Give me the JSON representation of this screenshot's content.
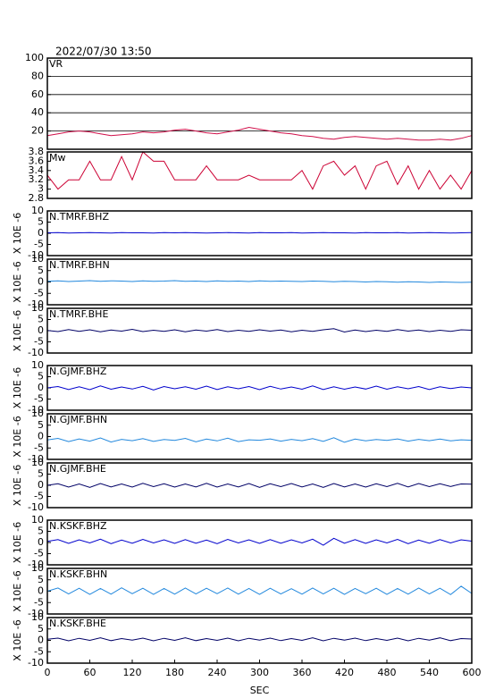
{
  "header": {
    "timestamp": "2022/07/30 13:50"
  },
  "chart_data": [
    {
      "type": "line",
      "title": "VR",
      "color": "#d0104a",
      "grid": true,
      "ylim": [
        0,
        100
      ],
      "yticks": [
        20,
        40,
        60,
        80,
        100
      ],
      "xlim": [
        0,
        600
      ],
      "x": [
        0,
        15,
        30,
        45,
        60,
        75,
        90,
        105,
        120,
        135,
        150,
        165,
        180,
        195,
        210,
        225,
        240,
        255,
        270,
        285,
        300,
        315,
        330,
        345,
        360,
        375,
        390,
        405,
        420,
        435,
        450,
        465,
        480,
        495,
        510,
        525,
        540,
        555,
        570,
        585,
        600
      ],
      "values": [
        15,
        17,
        19,
        20,
        19,
        17,
        15,
        16,
        17,
        19,
        18,
        19,
        21,
        22,
        20,
        18,
        17,
        19,
        21,
        24,
        22,
        20,
        18,
        17,
        15,
        14,
        12,
        11,
        13,
        14,
        13,
        12,
        11,
        12,
        11,
        10,
        10,
        11,
        10,
        12,
        15
      ]
    },
    {
      "type": "line",
      "title": "Mw",
      "color": "#cc0033",
      "grid": false,
      "ylim": [
        2.8,
        3.8
      ],
      "yticks": [
        2.8,
        3.0,
        3.2,
        3.4,
        3.6,
        3.8
      ],
      "xlim": [
        0,
        600
      ],
      "x": [
        0,
        15,
        30,
        45,
        60,
        75,
        90,
        105,
        120,
        135,
        150,
        165,
        180,
        195,
        210,
        225,
        240,
        255,
        270,
        285,
        300,
        315,
        330,
        345,
        360,
        375,
        390,
        405,
        420,
        435,
        450,
        465,
        480,
        495,
        510,
        525,
        540,
        555,
        570,
        585,
        600
      ],
      "values": [
        3.3,
        3.0,
        3.2,
        3.2,
        3.6,
        3.2,
        3.2,
        3.7,
        3.2,
        3.8,
        3.6,
        3.6,
        3.2,
        3.2,
        3.2,
        3.5,
        3.2,
        3.2,
        3.2,
        3.3,
        3.2,
        3.2,
        3.2,
        3.2,
        3.4,
        3.0,
        3.5,
        3.6,
        3.3,
        3.5,
        3.0,
        3.5,
        3.6,
        3.1,
        3.5,
        3.0,
        3.4,
        3.0,
        3.3,
        3.0,
        3.4
      ]
    },
    {
      "type": "line",
      "title": "N.TMRF.BHZ",
      "ylabel": "X 10E -6",
      "color": "#0000cc",
      "ylim": [
        -10,
        10
      ],
      "yticks": [
        -10,
        -5,
        0,
        5,
        10
      ],
      "xlim": [
        0,
        600
      ],
      "x": [
        0,
        15,
        30,
        45,
        60,
        75,
        90,
        105,
        120,
        135,
        150,
        165,
        180,
        195,
        210,
        225,
        240,
        255,
        270,
        285,
        300,
        315,
        330,
        345,
        360,
        375,
        390,
        405,
        420,
        435,
        450,
        465,
        480,
        495,
        510,
        525,
        540,
        555,
        570,
        585,
        600
      ],
      "values": [
        0.2,
        0.3,
        0.1,
        0.2,
        0.3,
        0.2,
        0.1,
        0.3,
        0.2,
        0.2,
        0.1,
        0.3,
        0.2,
        0.3,
        0.2,
        0.1,
        0.2,
        0.3,
        0.2,
        0.1,
        0.3,
        0.2,
        0.2,
        0.3,
        0.1,
        0.2,
        0.3,
        0.2,
        0.2,
        0.1,
        0.3,
        0.2,
        0.2,
        0.3,
        0.1,
        0.2,
        0.3,
        0.2,
        0.1,
        0.2,
        0.3
      ]
    },
    {
      "type": "line",
      "title": "N.TMRF.BHN",
      "ylabel": "X 10E -6",
      "color": "#2288dd",
      "ylim": [
        -10,
        10
      ],
      "yticks": [
        -10,
        -5,
        0,
        5,
        10
      ],
      "xlim": [
        0,
        600
      ],
      "x": [
        0,
        15,
        30,
        45,
        60,
        75,
        90,
        105,
        120,
        135,
        150,
        165,
        180,
        195,
        210,
        225,
        240,
        255,
        270,
        285,
        300,
        315,
        330,
        345,
        360,
        375,
        390,
        405,
        420,
        435,
        450,
        465,
        480,
        495,
        510,
        525,
        540,
        555,
        570,
        585,
        600
      ],
      "values": [
        0.3,
        0.5,
        0.2,
        0.4,
        0.6,
        0.3,
        0.5,
        0.4,
        0.2,
        0.5,
        0.3,
        0.4,
        0.6,
        0.3,
        0.4,
        0.2,
        0.5,
        0.3,
        0.4,
        0.2,
        0.5,
        0.3,
        0.4,
        0.3,
        0.2,
        0.4,
        0.3,
        0.1,
        0.3,
        0.2,
        0.0,
        0.2,
        0.1,
        -0.1,
        0.1,
        0.0,
        -0.2,
        0.0,
        -0.1,
        -0.2,
        -0.1
      ]
    },
    {
      "type": "line",
      "title": "N.TMRF.BHE",
      "ylabel": "X 10E -6",
      "color": "#000066",
      "ylim": [
        -10,
        10
      ],
      "yticks": [
        -10,
        -5,
        0,
        5,
        10
      ],
      "xlim": [
        0,
        600
      ],
      "x": [
        0,
        15,
        30,
        45,
        60,
        75,
        90,
        105,
        120,
        135,
        150,
        165,
        180,
        195,
        210,
        225,
        240,
        255,
        270,
        285,
        300,
        315,
        330,
        345,
        360,
        375,
        390,
        405,
        420,
        435,
        450,
        465,
        480,
        495,
        510,
        525,
        540,
        555,
        570,
        585,
        600
      ],
      "values": [
        0.1,
        -0.4,
        0.5,
        -0.3,
        0.4,
        -0.5,
        0.3,
        -0.2,
        0.6,
        -0.4,
        0.2,
        -0.3,
        0.4,
        -0.5,
        0.3,
        -0.2,
        0.5,
        -0.4,
        0.2,
        -0.3,
        0.4,
        -0.2,
        0.3,
        -0.5,
        0.2,
        -0.3,
        0.4,
        0.9,
        -0.6,
        0.3,
        -0.4,
        0.2,
        -0.3,
        0.5,
        -0.2,
        0.3,
        -0.4,
        0.2,
        -0.3,
        0.4,
        0.2
      ]
    },
    {
      "type": "line",
      "title": "N.GJMF.BHZ",
      "ylabel": "X 10E -6",
      "color": "#0000cc",
      "ylim": [
        -10,
        10
      ],
      "yticks": [
        -10,
        -5,
        0,
        5,
        10
      ],
      "xlim": [
        0,
        600
      ],
      "x": [
        0,
        15,
        30,
        45,
        60,
        75,
        90,
        105,
        120,
        135,
        150,
        165,
        180,
        195,
        210,
        225,
        240,
        255,
        270,
        285,
        300,
        315,
        330,
        345,
        360,
        375,
        390,
        405,
        420,
        435,
        450,
        465,
        480,
        495,
        510,
        525,
        540,
        555,
        570,
        585,
        600
      ],
      "values": [
        0.0,
        0.6,
        -0.7,
        0.5,
        -0.8,
        0.9,
        -0.6,
        0.4,
        -0.5,
        0.7,
        -0.9,
        0.6,
        -0.4,
        0.5,
        -0.6,
        0.8,
        -0.7,
        0.5,
        -0.4,
        0.6,
        -0.8,
        0.7,
        -0.5,
        0.4,
        -0.6,
        0.9,
        -0.7,
        0.5,
        -0.6,
        0.4,
        -0.5,
        0.8,
        -0.6,
        0.5,
        -0.4,
        0.6,
        -0.7,
        0.5,
        -0.3,
        0.4,
        0.0
      ]
    },
    {
      "type": "line",
      "title": "N.GJMF.BHN",
      "ylabel": "X 10E -6",
      "color": "#2288dd",
      "ylim": [
        -10,
        10
      ],
      "yticks": [
        -10,
        -5,
        0,
        5,
        10
      ],
      "xlim": [
        0,
        600
      ],
      "x": [
        0,
        15,
        30,
        45,
        60,
        75,
        90,
        105,
        120,
        135,
        150,
        165,
        180,
        195,
        210,
        225,
        240,
        255,
        270,
        285,
        300,
        315,
        330,
        345,
        360,
        375,
        390,
        405,
        420,
        435,
        450,
        465,
        480,
        495,
        510,
        525,
        540,
        555,
        570,
        585,
        600
      ],
      "values": [
        -1.5,
        -0.8,
        -2.2,
        -1.0,
        -2.0,
        -0.6,
        -2.4,
        -1.2,
        -1.8,
        -0.9,
        -2.1,
        -1.3,
        -1.7,
        -0.8,
        -2.3,
        -1.1,
        -1.9,
        -0.7,
        -2.2,
        -1.4,
        -1.6,
        -1.0,
        -2.0,
        -1.2,
        -1.8,
        -0.9,
        -2.1,
        -0.5,
        -2.5,
        -1.1,
        -1.9,
        -1.3,
        -1.7,
        -1.0,
        -2.0,
        -1.2,
        -1.8,
        -1.1,
        -1.9,
        -1.4,
        -1.6
      ]
    },
    {
      "type": "line",
      "title": "N.GJMF.BHE",
      "ylabel": "X 10E -6",
      "color": "#000066",
      "ylim": [
        -10,
        10
      ],
      "yticks": [
        -10,
        -5,
        0,
        5,
        10
      ],
      "xlim": [
        0,
        600
      ],
      "x": [
        0,
        15,
        30,
        45,
        60,
        75,
        90,
        105,
        120,
        135,
        150,
        165,
        180,
        195,
        210,
        225,
        240,
        255,
        270,
        285,
        300,
        315,
        330,
        345,
        360,
        375,
        390,
        405,
        420,
        435,
        450,
        465,
        480,
        495,
        510,
        525,
        540,
        555,
        570,
        585,
        600
      ],
      "values": [
        0.0,
        0.7,
        -0.8,
        0.6,
        -0.9,
        0.8,
        -0.7,
        0.6,
        -0.8,
        0.9,
        -0.6,
        0.7,
        -0.8,
        0.6,
        -0.7,
        0.9,
        -0.8,
        0.6,
        -0.7,
        0.8,
        -0.9,
        0.7,
        -0.6,
        0.8,
        -0.7,
        0.6,
        -0.9,
        0.8,
        -0.7,
        0.6,
        -0.8,
        0.7,
        -0.6,
        0.9,
        -0.7,
        0.8,
        -0.6,
        0.7,
        -0.5,
        0.6,
        0.5
      ]
    },
    {
      "type": "line",
      "title": "N.KSKF.BHZ",
      "ylabel": "X 10E -6",
      "color": "#0000cc",
      "ylim": [
        -10,
        10
      ],
      "yticks": [
        -10,
        -5,
        0,
        5,
        10
      ],
      "xlim": [
        0,
        600
      ],
      "x": [
        0,
        15,
        30,
        45,
        60,
        75,
        90,
        105,
        120,
        135,
        150,
        165,
        180,
        195,
        210,
        225,
        240,
        255,
        270,
        285,
        300,
        315,
        330,
        345,
        360,
        375,
        390,
        405,
        420,
        435,
        450,
        465,
        480,
        495,
        510,
        525,
        540,
        555,
        570,
        585,
        600
      ],
      "values": [
        0.5,
        1.3,
        -0.4,
        1.2,
        -0.2,
        1.5,
        -0.5,
        1.1,
        -0.3,
        1.4,
        -0.2,
        1.2,
        -0.4,
        1.3,
        -0.3,
        1.1,
        -0.5,
        1.4,
        -0.2,
        1.2,
        -0.4,
        1.3,
        -0.3,
        1.2,
        -0.2,
        1.5,
        -1.2,
        1.9,
        -0.3,
        1.3,
        -0.4,
        1.2,
        -0.2,
        1.4,
        -0.5,
        1.1,
        -0.3,
        1.3,
        -0.2,
        1.2,
        0.6
      ]
    },
    {
      "type": "line",
      "title": "N.KSKF.BHN",
      "ylabel": "X 10E -6",
      "color": "#2288dd",
      "ylim": [
        -10,
        10
      ],
      "yticks": [
        -10,
        -5,
        0,
        5,
        10
      ],
      "xlim": [
        0,
        600
      ],
      "x": [
        0,
        15,
        30,
        45,
        60,
        75,
        90,
        105,
        120,
        135,
        150,
        165,
        180,
        195,
        210,
        225,
        240,
        255,
        270,
        285,
        300,
        315,
        330,
        345,
        360,
        375,
        390,
        405,
        420,
        435,
        450,
        465,
        480,
        495,
        510,
        525,
        540,
        555,
        570,
        585,
        600
      ],
      "values": [
        0.0,
        1.4,
        -1.2,
        1.3,
        -1.4,
        1.2,
        -1.3,
        1.5,
        -1.1,
        1.3,
        -1.4,
        1.2,
        -1.3,
        1.4,
        -1.2,
        1.3,
        -1.1,
        1.4,
        -1.3,
        1.2,
        -1.4,
        1.3,
        -1.2,
        1.1,
        -1.3,
        1.4,
        -1.2,
        1.3,
        -1.4,
        1.2,
        -1.1,
        1.3,
        -1.4,
        1.2,
        -1.3,
        1.4,
        -1.2,
        1.3,
        -1.5,
        2.2,
        -1.0
      ]
    },
    {
      "type": "line",
      "title": "N.KSKF.BHE",
      "ylabel": "X 10E -6",
      "color": "#000066",
      "ylim": [
        -10,
        10
      ],
      "yticks": [
        -10,
        -5,
        0,
        5,
        10
      ],
      "xlim": [
        0,
        600
      ],
      "x": [
        0,
        15,
        30,
        45,
        60,
        75,
        90,
        105,
        120,
        135,
        150,
        165,
        180,
        195,
        210,
        225,
        240,
        255,
        270,
        285,
        300,
        315,
        330,
        345,
        360,
        375,
        390,
        405,
        420,
        435,
        450,
        465,
        480,
        495,
        510,
        525,
        540,
        555,
        570,
        585,
        600
      ],
      "values": [
        0.5,
        1.0,
        -0.2,
        0.9,
        0.0,
        1.1,
        -0.1,
        0.8,
        0.1,
        1.0,
        -0.2,
        0.9,
        0.0,
        1.1,
        -0.1,
        0.8,
        0.0,
        1.0,
        -0.2,
        0.9,
        0.1,
        1.0,
        -0.1,
        0.8,
        0.0,
        1.1,
        -0.2,
        0.9,
        0.1,
        1.0,
        -0.1,
        0.8,
        0.0,
        1.0,
        -0.2,
        0.9,
        0.1,
        1.1,
        -0.1,
        0.8,
        0.6
      ],
      "xlabel": "SEC",
      "xticks": [
        0,
        60,
        120,
        180,
        240,
        300,
        360,
        420,
        480,
        540,
        600
      ]
    }
  ]
}
